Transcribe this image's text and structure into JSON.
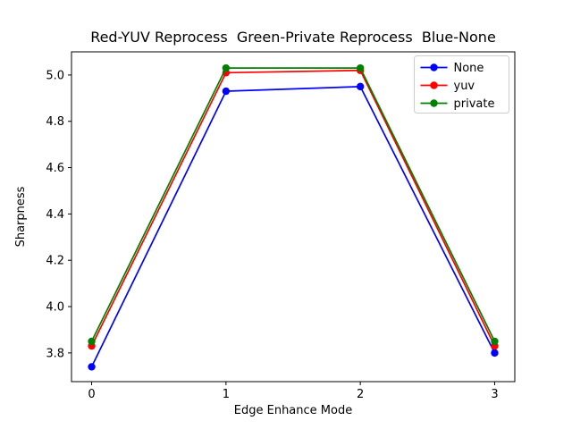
{
  "figure": {
    "background": "#ffffff"
  },
  "chart_data": {
    "type": "line",
    "title": "Red-YUV Reprocess  Green-Private Reprocess  Blue-None",
    "xlabel": "Edge Enhance Mode",
    "ylabel": "Sharpness",
    "x": [
      0,
      1,
      2,
      3
    ],
    "series": [
      {
        "name": "None",
        "color": "#0000ff",
        "values": [
          3.74,
          4.93,
          4.95,
          3.8
        ]
      },
      {
        "name": "yuv",
        "color": "#ff0000",
        "values": [
          3.83,
          5.01,
          5.02,
          3.83
        ]
      },
      {
        "name": "private",
        "color": "#008000",
        "values": [
          3.85,
          5.03,
          5.03,
          3.85
        ]
      }
    ],
    "xticks": [
      0,
      1,
      2,
      3
    ],
    "yticks": [
      3.8,
      4.0,
      4.2,
      4.4,
      4.6,
      4.8,
      5.0
    ],
    "xlim": [
      -0.15,
      3.15
    ],
    "ylim": [
      3.676,
      5.1
    ],
    "grid": false,
    "marker": "circle",
    "legend_position": "upper right",
    "axis_color": "#000000",
    "legend_border_color": "#cccccc",
    "legend_background": "#ffffff"
  }
}
